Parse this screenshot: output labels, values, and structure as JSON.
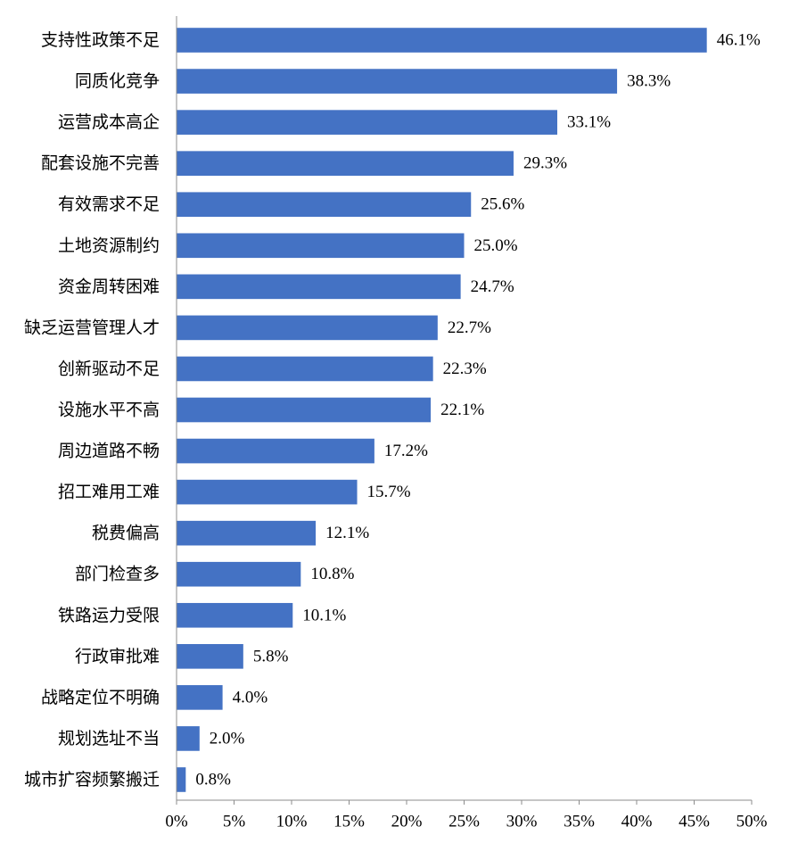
{
  "chart_data": {
    "type": "bar",
    "orientation": "horizontal",
    "title": "",
    "xlabel": "",
    "ylabel": "",
    "bar_color": "#4472C4",
    "xlim": [
      0,
      50
    ],
    "x_ticks": [
      "0%",
      "5%",
      "10%",
      "15%",
      "20%",
      "25%",
      "30%",
      "35%",
      "40%",
      "45%",
      "50%"
    ],
    "grid": false,
    "categories": [
      "支持性政策不足",
      "同质化竞争",
      "运营成本高企",
      "配套设施不完善",
      "有效需求不足",
      "土地资源制约",
      "资金周转困难",
      "缺乏运营管理人才",
      "创新驱动不足",
      "设施水平不高",
      "周边道路不畅",
      "招工难用工难",
      "税费偏高",
      "部门检查多",
      "铁路运力受限",
      "行政审批难",
      "战略定位不明确",
      "规划选址不当",
      "城市扩容频繁搬迁"
    ],
    "values": [
      46.1,
      38.3,
      33.1,
      29.3,
      25.6,
      25.0,
      24.7,
      22.7,
      22.3,
      22.1,
      17.2,
      15.7,
      12.1,
      10.8,
      10.1,
      5.8,
      4.0,
      2.0,
      0.8
    ],
    "value_labels": [
      "46.1%",
      "38.3%",
      "33.1%",
      "29.3%",
      "25.6%",
      "25.0%",
      "24.7%",
      "22.7%",
      "22.3%",
      "22.1%",
      "17.2%",
      "15.7%",
      "12.1%",
      "10.8%",
      "10.1%",
      "5.8%",
      "4.0%",
      "2.0%",
      "0.8%"
    ]
  }
}
